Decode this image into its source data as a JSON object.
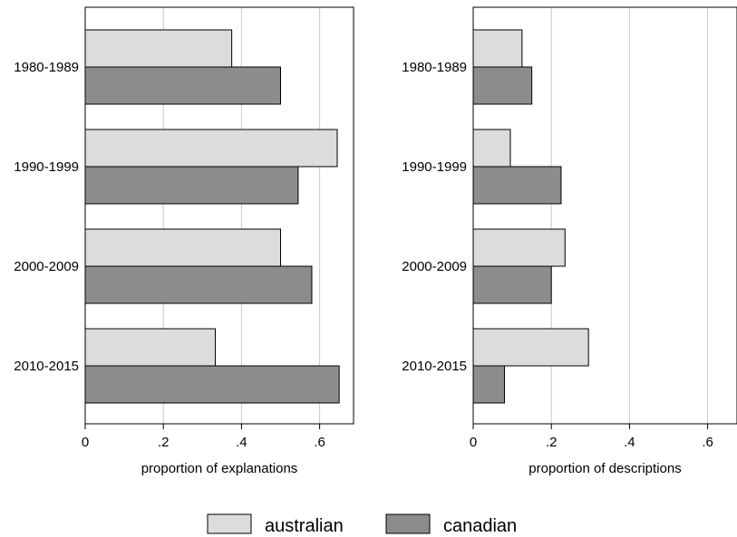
{
  "chart_data": [
    {
      "type": "bar",
      "orientation": "horizontal",
      "categories": [
        "1980-1989",
        "1990-1999",
        "2000-2009",
        "2010-2015"
      ],
      "series": [
        {
          "name": "australian",
          "values": [
            0.375,
            0.645,
            0.5,
            0.333
          ]
        },
        {
          "name": "canadian",
          "values": [
            0.5,
            0.545,
            0.58,
            0.65
          ]
        }
      ],
      "xlabel": "proportion of explanations",
      "ylabel": "",
      "xlim": [
        0,
        0.69
      ],
      "xticks": [
        0,
        0.2,
        0.4,
        0.6
      ],
      "xtick_labels": [
        "0",
        ".2",
        ".4",
        ".6"
      ],
      "grid": true
    },
    {
      "type": "bar",
      "orientation": "horizontal",
      "categories": [
        "1980-1989",
        "1990-1999",
        "2000-2009",
        "2010-2015"
      ],
      "series": [
        {
          "name": "australian",
          "values": [
            0.125,
            0.095,
            0.235,
            0.295
          ]
        },
        {
          "name": "canadian",
          "values": [
            0.15,
            0.225,
            0.2,
            0.08
          ]
        }
      ],
      "xlabel": "proportion of descriptions",
      "ylabel": "",
      "xlim": [
        0,
        0.69
      ],
      "xticks": [
        0,
        0.2,
        0.4,
        0.6
      ],
      "xtick_labels": [
        "0",
        ".2",
        ".4",
        ".6"
      ],
      "grid": true
    }
  ],
  "legend": {
    "placement": "bottom",
    "items": [
      {
        "label": "australian",
        "color": "#dcdcdc"
      },
      {
        "label": "canadian",
        "color": "#8c8c8c"
      }
    ]
  },
  "colors": {
    "australian": "#dcdcdc",
    "canadian": "#8c8c8c"
  }
}
